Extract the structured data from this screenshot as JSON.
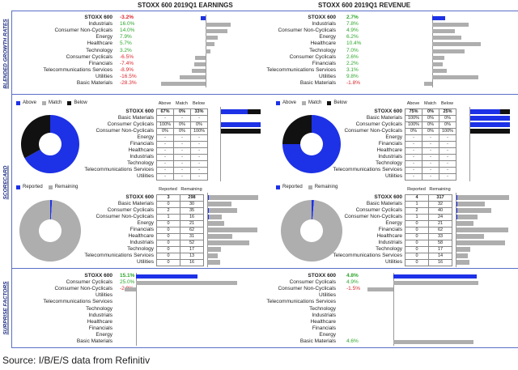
{
  "section_labels": {
    "blended": "BLENDED GROWTH RATES",
    "scorecard": "SCORECARD",
    "surprise": "SURPRISE FACTORS"
  },
  "footer": "Source: I/B/E/S data from Refinitiv",
  "colors": {
    "above": "#1d31e6",
    "match": "#aeaeae",
    "below": "#111111",
    "positive": "#2ea62e",
    "negative": "#d9262c",
    "remaining": "#aeaeae",
    "reported": "#1d31e6"
  },
  "chart_data": [
    {
      "type": "bar",
      "id": "earnings-growth",
      "title": "STOXX 600 2019Q1 EARNINGS",
      "categories": [
        "STOXX 600",
        "Industrials",
        "Consumer Non-Cyclicals",
        "Energy",
        "Healthcare",
        "Technology",
        "Consumer Cyclicals",
        "Financials",
        "Telecommunications Services",
        "Utilities",
        "Basic Materials"
      ],
      "labels": [
        "-3.2%",
        "16.0%",
        "14.0%",
        "7.9%",
        "5.7%",
        "3.2%",
        "-6.5%",
        "-7.4%",
        "-8.9%",
        "-16.5%",
        "-28.3%"
      ],
      "values": [
        -3.2,
        16.0,
        14.0,
        7.9,
        5.7,
        3.2,
        -6.5,
        -7.4,
        -8.9,
        -16.5,
        -28.3
      ]
    },
    {
      "type": "bar",
      "id": "revenue-growth",
      "title": "STOXX 600 2019Q1 REVENUE",
      "categories": [
        "STOXX 600",
        "Industrials",
        "Consumer Non-Cyclicals",
        "Energy",
        "Healthcare",
        "Technology",
        "Consumer Cyclicals",
        "Financials",
        "Telecommunications Services",
        "Utilities",
        "Basic Materials"
      ],
      "labels": [
        "2.7%",
        "7.8%",
        "4.9%",
        "6.2%",
        "10.4%",
        "7.0%",
        "2.6%",
        "2.2%",
        "3.1%",
        "9.8%",
        "-1.8%"
      ],
      "values": [
        2.7,
        7.8,
        4.9,
        6.2,
        10.4,
        7.0,
        2.6,
        2.2,
        3.1,
        9.8,
        -1.8
      ]
    },
    {
      "type": "table",
      "id": "earnings-scorecard-beats",
      "legend": [
        "Above",
        "Match",
        "Below"
      ],
      "headers": [
        "Above",
        "Match",
        "Below"
      ],
      "pie": {
        "Above": 67,
        "Match": 0,
        "Below": 33
      },
      "rows": [
        {
          "name": "STOXX 600",
          "cells": [
            "67%",
            "0%",
            "33%"
          ],
          "bar": [
            67,
            0,
            33
          ]
        },
        {
          "name": "Basic Materials",
          "cells": [
            "-",
            "-",
            "-"
          ],
          "bar": [
            0,
            0,
            0
          ]
        },
        {
          "name": "Consumer Cyclicals",
          "cells": [
            "100%",
            "0%",
            "0%"
          ],
          "bar": [
            100,
            0,
            0
          ]
        },
        {
          "name": "Consumer Non-Cyclicals",
          "cells": [
            "0%",
            "0%",
            "100%"
          ],
          "bar": [
            0,
            0,
            100
          ]
        },
        {
          "name": "Energy",
          "cells": [
            "-",
            "-",
            "-"
          ],
          "bar": [
            0,
            0,
            0
          ]
        },
        {
          "name": "Financials",
          "cells": [
            "-",
            "-",
            "-"
          ],
          "bar": [
            0,
            0,
            0
          ]
        },
        {
          "name": "Healthcare",
          "cells": [
            "-",
            "-",
            "-"
          ],
          "bar": [
            0,
            0,
            0
          ]
        },
        {
          "name": "Industrials",
          "cells": [
            "-",
            "-",
            "-"
          ],
          "bar": [
            0,
            0,
            0
          ]
        },
        {
          "name": "Technology",
          "cells": [
            "-",
            "-",
            "-"
          ],
          "bar": [
            0,
            0,
            0
          ]
        },
        {
          "name": "Telecommunications Services",
          "cells": [
            "-",
            "-",
            "-"
          ],
          "bar": [
            0,
            0,
            0
          ]
        },
        {
          "name": "Utilities",
          "cells": [
            "-",
            "-",
            "-"
          ],
          "bar": [
            0,
            0,
            0
          ]
        }
      ]
    },
    {
      "type": "table",
      "id": "revenue-scorecard-beats",
      "legend": [
        "Above",
        "Match",
        "Below"
      ],
      "headers": [
        "Above",
        "Match",
        "Below"
      ],
      "pie": {
        "Above": 75,
        "Match": 0,
        "Below": 25
      },
      "rows": [
        {
          "name": "STOXX 600",
          "cells": [
            "75%",
            "0%",
            "25%"
          ],
          "bar": [
            75,
            0,
            25
          ]
        },
        {
          "name": "Basic Materials",
          "cells": [
            "100%",
            "0%",
            "0%"
          ],
          "bar": [
            100,
            0,
            0
          ]
        },
        {
          "name": "Consumer Cyclicals",
          "cells": [
            "100%",
            "0%",
            "0%"
          ],
          "bar": [
            100,
            0,
            0
          ]
        },
        {
          "name": "Consumer Non-Cyclicals",
          "cells": [
            "0%",
            "0%",
            "100%"
          ],
          "bar": [
            0,
            0,
            100
          ]
        },
        {
          "name": "Energy",
          "cells": [
            "-",
            "-",
            "-"
          ],
          "bar": [
            0,
            0,
            0
          ]
        },
        {
          "name": "Financials",
          "cells": [
            "-",
            "-",
            "-"
          ],
          "bar": [
            0,
            0,
            0
          ]
        },
        {
          "name": "Healthcare",
          "cells": [
            "-",
            "-",
            "-"
          ],
          "bar": [
            0,
            0,
            0
          ]
        },
        {
          "name": "Industrials",
          "cells": [
            "-",
            "-",
            "-"
          ],
          "bar": [
            0,
            0,
            0
          ]
        },
        {
          "name": "Technology",
          "cells": [
            "-",
            "-",
            "-"
          ],
          "bar": [
            0,
            0,
            0
          ]
        },
        {
          "name": "Telecommunications Services",
          "cells": [
            "-",
            "-",
            "-"
          ],
          "bar": [
            0,
            0,
            0
          ]
        },
        {
          "name": "Utilities",
          "cells": [
            "-",
            "-",
            "-"
          ],
          "bar": [
            0,
            0,
            0
          ]
        }
      ]
    },
    {
      "type": "table",
      "id": "earnings-scorecard-reported",
      "legend": [
        "Reported",
        "Remaining"
      ],
      "headers": [
        "Reported",
        "Remaining"
      ],
      "rows": [
        {
          "name": "STOXX 600",
          "cells": [
            "3",
            "298"
          ],
          "values": [
            3,
            298
          ]
        },
        {
          "name": "Basic Materials",
          "cells": [
            "0",
            "30"
          ],
          "values": [
            0,
            30
          ]
        },
        {
          "name": "Consumer Cyclicals",
          "cells": [
            "2",
            "35"
          ],
          "values": [
            2,
            35
          ]
        },
        {
          "name": "Consumer Non-Cyclicals",
          "cells": [
            "1",
            "16"
          ],
          "values": [
            1,
            16
          ]
        },
        {
          "name": "Energy",
          "cells": [
            "0",
            "21"
          ],
          "values": [
            0,
            21
          ]
        },
        {
          "name": "Financials",
          "cells": [
            "0",
            "62"
          ],
          "values": [
            0,
            62
          ]
        },
        {
          "name": "Healthcare",
          "cells": [
            "0",
            "31"
          ],
          "values": [
            0,
            31
          ]
        },
        {
          "name": "Industrials",
          "cells": [
            "0",
            "52"
          ],
          "values": [
            0,
            52
          ]
        },
        {
          "name": "Technology",
          "cells": [
            "0",
            "17"
          ],
          "values": [
            0,
            17
          ]
        },
        {
          "name": "Telecommunications Services",
          "cells": [
            "0",
            "13"
          ],
          "values": [
            0,
            13
          ]
        },
        {
          "name": "Utilities",
          "cells": [
            "0",
            "16"
          ],
          "values": [
            0,
            16
          ]
        }
      ]
    },
    {
      "type": "table",
      "id": "revenue-scorecard-reported",
      "legend": [
        "Reported",
        "Remaining"
      ],
      "headers": [
        "Reported",
        "Remaining"
      ],
      "rows": [
        {
          "name": "STOXX 600",
          "cells": [
            "4",
            "317"
          ],
          "values": [
            4,
            317
          ]
        },
        {
          "name": "Basic Materials",
          "cells": [
            "1",
            "32"
          ],
          "values": [
            1,
            32
          ]
        },
        {
          "name": "Consumer Cyclicals",
          "cells": [
            "2",
            "40"
          ],
          "values": [
            2,
            40
          ]
        },
        {
          "name": "Consumer Non-Cyclicals",
          "cells": [
            "1",
            "24"
          ],
          "values": [
            1,
            24
          ]
        },
        {
          "name": "Energy",
          "cells": [
            "0",
            "21"
          ],
          "values": [
            0,
            21
          ]
        },
        {
          "name": "Financials",
          "cells": [
            "0",
            "62"
          ],
          "values": [
            0,
            62
          ]
        },
        {
          "name": "Healthcare",
          "cells": [
            "0",
            "33"
          ],
          "values": [
            0,
            33
          ]
        },
        {
          "name": "Industrials",
          "cells": [
            "0",
            "58"
          ],
          "values": [
            0,
            58
          ]
        },
        {
          "name": "Technology",
          "cells": [
            "0",
            "17"
          ],
          "values": [
            0,
            17
          ]
        },
        {
          "name": "Telecommunications Services",
          "cells": [
            "0",
            "14"
          ],
          "values": [
            0,
            14
          ]
        },
        {
          "name": "Utilities",
          "cells": [
            "0",
            "16"
          ],
          "values": [
            0,
            16
          ]
        }
      ]
    },
    {
      "type": "bar",
      "id": "earnings-surprise",
      "categories": [
        "STOXX 600",
        "Consumer Cyclicals",
        "Consumer Non-Cyclicals",
        "Utilities",
        "Telecommunications Services",
        "Technology",
        "Industrials",
        "Healthcare",
        "Financials",
        "Energy",
        "Basic Materials"
      ],
      "labels": [
        "15.1%",
        "25.0%",
        "-2.9%",
        "",
        "",
        "",
        "",
        "",
        "",
        "",
        ""
      ],
      "values": [
        15.1,
        25.0,
        -2.9,
        null,
        null,
        null,
        null,
        null,
        null,
        null,
        null
      ]
    },
    {
      "type": "bar",
      "id": "revenue-surprise",
      "categories": [
        "STOXX 600",
        "Consumer Cyclicals",
        "Consumer Non-Cyclicals",
        "Utilities",
        "Telecommunications Services",
        "Technology",
        "Industrials",
        "Healthcare",
        "Financials",
        "Energy",
        "Basic Materials"
      ],
      "labels": [
        "4.8%",
        "4.9%",
        "-1.5%",
        "",
        "",
        "",
        "",
        "",
        "",
        "",
        "4.6%"
      ],
      "values": [
        4.8,
        4.9,
        -1.5,
        null,
        null,
        null,
        null,
        null,
        null,
        null,
        4.6
      ]
    }
  ]
}
